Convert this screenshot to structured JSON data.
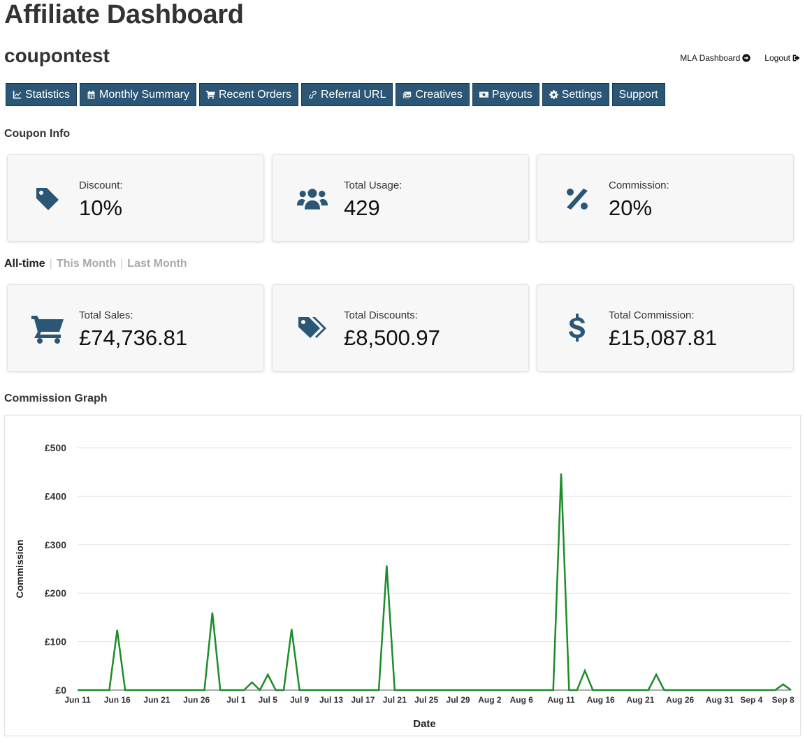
{
  "header": {
    "title": "Affiliate Dashboard",
    "username": "coupontest"
  },
  "toplinks": {
    "mla_dashboard": "MLA Dashboard",
    "logout": "Logout"
  },
  "nav": [
    {
      "label": "Statistics",
      "icon": "chart-line-icon"
    },
    {
      "label": "Monthly Summary",
      "icon": "calendar-icon"
    },
    {
      "label": "Recent Orders",
      "icon": "cart-icon"
    },
    {
      "label": "Referral URL",
      "icon": "link-icon"
    },
    {
      "label": "Creatives",
      "icon": "images-icon"
    },
    {
      "label": "Payouts",
      "icon": "money-icon"
    },
    {
      "label": "Settings",
      "icon": "gear-icon"
    },
    {
      "label": "Support",
      "icon": ""
    }
  ],
  "coupon_info": {
    "heading": "Coupon Info",
    "cards": [
      {
        "label": "Discount:",
        "value": "10%",
        "icon": "tag-icon"
      },
      {
        "label": "Total Usage:",
        "value": "429",
        "icon": "users-icon"
      },
      {
        "label": "Commission:",
        "value": "20%",
        "icon": "percent-icon"
      }
    ]
  },
  "period_tabs": {
    "all_time": "All-time",
    "this_month": "This Month",
    "last_month": "Last Month"
  },
  "totals": {
    "cards": [
      {
        "label": "Total Sales:",
        "value": "£74,736.81",
        "icon": "cart-icon"
      },
      {
        "label": "Total Discounts:",
        "value": "£8,500.97",
        "icon": "tags-icon"
      },
      {
        "label": "Total Commission:",
        "value": "£15,087.81",
        "icon": "dollar-icon"
      }
    ]
  },
  "graph": {
    "heading": "Commission Graph"
  },
  "colors": {
    "primary": "#2b5676",
    "line": "#1e8c2a"
  },
  "chart_data": {
    "type": "line",
    "xlabel": "Date",
    "ylabel": "Commission",
    "ylim": [
      0,
      500
    ],
    "yticks": [
      "£0",
      "£100",
      "£200",
      "£300",
      "£400",
      "£500"
    ],
    "xticks": [
      "Jun 11",
      "Jun 16",
      "Jun 21",
      "Jun 26",
      "Jul 1",
      "Jul 5",
      "Jul 9",
      "Jul 13",
      "Jul 17",
      "Jul 21",
      "Jul 25",
      "Jul 29",
      "Aug 2",
      "Aug 6",
      "Aug 11",
      "Aug 16",
      "Aug 21",
      "Aug 26",
      "Aug 31",
      "Sep 4",
      "Sep 8"
    ],
    "series": [
      {
        "name": "",
        "x": [
          "2024-06-11",
          "2024-06-15",
          "2024-06-16",
          "2024-06-17",
          "2024-06-27",
          "2024-06-28",
          "2024-06-29",
          "2024-07-02",
          "2024-07-03",
          "2024-07-04",
          "2024-07-05",
          "2024-07-06",
          "2024-07-07",
          "2024-07-08",
          "2024-07-09",
          "2024-07-19",
          "2024-07-20",
          "2024-07-21",
          "2024-08-10",
          "2024-08-11",
          "2024-08-12",
          "2024-08-13",
          "2024-08-14",
          "2024-08-15",
          "2024-08-22",
          "2024-08-23",
          "2024-08-24",
          "2024-09-07",
          "2024-09-08",
          "2024-09-09"
        ],
        "values": [
          0,
          0,
          124,
          0,
          0,
          160,
          0,
          0,
          16,
          0,
          32,
          0,
          0,
          126,
          0,
          0,
          257,
          0,
          0,
          447,
          0,
          0,
          40,
          0,
          0,
          32,
          0,
          0,
          12,
          0
        ]
      }
    ]
  }
}
